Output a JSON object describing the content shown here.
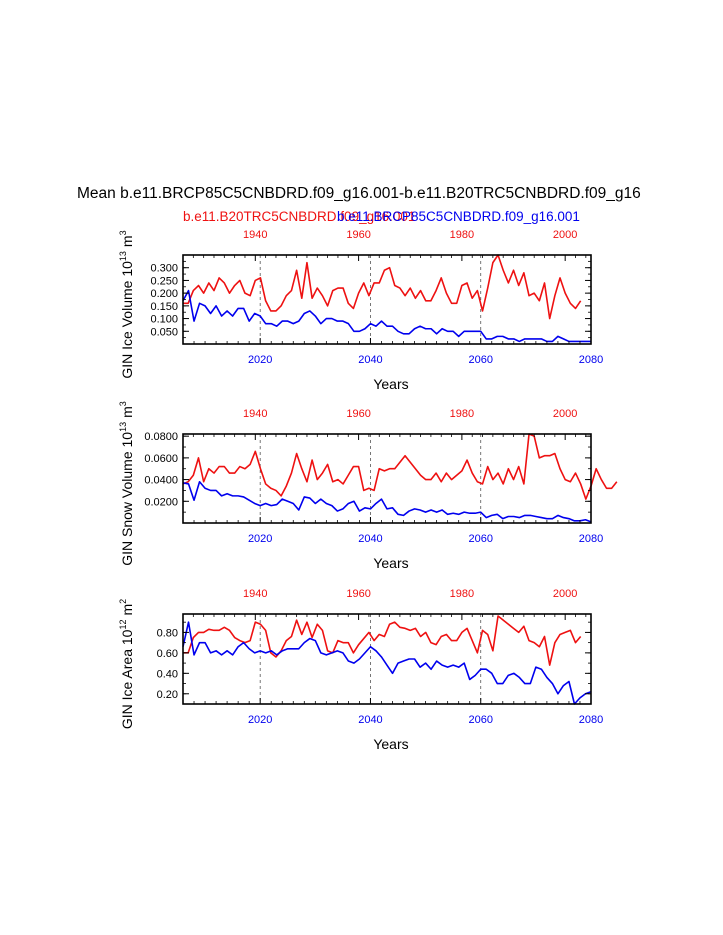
{
  "title": "Mean b.e11.BRCP85C5CNBDRD.f09_g16.001-b.e11.B20TRC5CNBDRD.f09_g16",
  "legend_red": "b.e11.B20TRC5CNBDRD.f09_g16.001",
  "legend_blue": "b.e11.BRCP85C5CNBDRD.f09_g16.001",
  "colors": {
    "red": "#ee1111",
    "blue": "#0000ee",
    "axis": "#000000",
    "grid": "#555555"
  },
  "chart_data": [
    {
      "type": "line",
      "ylabel": "GIN Ice Volume 10",
      "ylabel_exp": "13",
      "ylabel_unit": "m",
      "ylabel_unit_exp": "3",
      "xlabel": "Years",
      "ylim": [
        0.0,
        0.35
      ],
      "yticks": [
        0.05,
        0.1,
        0.15,
        0.2,
        0.25,
        0.3
      ],
      "ytick_labels": [
        "0.050",
        "0.100",
        "0.150",
        "0.200",
        "0.250",
        "0.300"
      ],
      "bottom_axis": {
        "range": [
          2006,
          2080
        ],
        "ticks": [
          2020,
          2040,
          2060,
          2080
        ],
        "labels": [
          "2020",
          "2040",
          "2060",
          "2080"
        ]
      },
      "top_axis": {
        "range": [
          1926,
          2005
        ],
        "ticks": [
          1940,
          1960,
          1980,
          2000
        ],
        "labels": [
          "1940",
          "1960",
          "1980",
          "2000"
        ]
      },
      "gridlines_x": [
        2020,
        2040,
        2060
      ],
      "series": [
        {
          "name": "b.e11.B20TRC5CNBDRD.f09_g16.001",
          "color": "#ee1111",
          "x_start": 1926,
          "values": [
            0.16,
            0.16,
            0.21,
            0.23,
            0.2,
            0.24,
            0.21,
            0.26,
            0.24,
            0.2,
            0.23,
            0.25,
            0.2,
            0.19,
            0.25,
            0.26,
            0.17,
            0.13,
            0.13,
            0.15,
            0.19,
            0.21,
            0.29,
            0.18,
            0.32,
            0.18,
            0.22,
            0.19,
            0.15,
            0.21,
            0.22,
            0.22,
            0.16,
            0.14,
            0.2,
            0.24,
            0.19,
            0.24,
            0.24,
            0.29,
            0.3,
            0.23,
            0.22,
            0.19,
            0.22,
            0.18,
            0.21,
            0.17,
            0.17,
            0.21,
            0.26,
            0.2,
            0.16,
            0.16,
            0.23,
            0.24,
            0.18,
            0.21,
            0.13,
            0.22,
            0.32,
            0.35,
            0.29,
            0.24,
            0.29,
            0.23,
            0.28,
            0.19,
            0.2,
            0.17,
            0.24,
            0.1,
            0.19,
            0.26,
            0.2,
            0.16,
            0.14,
            0.17
          ]
        },
        {
          "name": "b.e11.BRCP85C5CNBDRD.f09_g16.001",
          "color": "#0000ee",
          "x_start": 2006,
          "values": [
            0.17,
            0.21,
            0.09,
            0.16,
            0.15,
            0.12,
            0.15,
            0.11,
            0.13,
            0.11,
            0.14,
            0.14,
            0.09,
            0.12,
            0.11,
            0.08,
            0.08,
            0.07,
            0.09,
            0.09,
            0.08,
            0.09,
            0.12,
            0.13,
            0.11,
            0.08,
            0.1,
            0.1,
            0.09,
            0.09,
            0.08,
            0.05,
            0.05,
            0.06,
            0.08,
            0.07,
            0.09,
            0.07,
            0.07,
            0.05,
            0.04,
            0.04,
            0.06,
            0.07,
            0.06,
            0.06,
            0.04,
            0.06,
            0.05,
            0.05,
            0.03,
            0.05,
            0.05,
            0.05,
            0.05,
            0.02,
            0.02,
            0.03,
            0.03,
            0.02,
            0.02,
            0.01,
            0.02,
            0.02,
            0.02,
            0.02,
            0.01,
            0.01,
            0.03,
            0.02,
            0.01,
            0.01,
            0.01,
            0.01,
            0.01
          ]
        }
      ]
    },
    {
      "type": "line",
      "ylabel": "GIN Snow Volume 10",
      "ylabel_exp": "13",
      "ylabel_unit": "m",
      "ylabel_unit_exp": "3",
      "xlabel": "Years",
      "ylim": [
        0.0,
        0.082
      ],
      "yticks": [
        0.02,
        0.04,
        0.06,
        0.08
      ],
      "ytick_labels": [
        "0.0200",
        "0.0400",
        "0.0600",
        "0.0800"
      ],
      "bottom_axis": {
        "range": [
          2006,
          2080
        ],
        "ticks": [
          2020,
          2040,
          2060,
          2080
        ],
        "labels": [
          "2020",
          "2040",
          "2060",
          "2080"
        ]
      },
      "top_axis": {
        "range": [
          1926,
          2005
        ],
        "ticks": [
          1940,
          1960,
          1980,
          2000
        ],
        "labels": [
          "1940",
          "1960",
          "1980",
          "2000"
        ]
      },
      "gridlines_x": [
        2020,
        2040,
        2060
      ],
      "series": [
        {
          "name": "b.e11.B20TRC5CNBDRD.f09_g16.001",
          "color": "#ee1111",
          "x_start": 1926,
          "values": [
            0.036,
            0.038,
            0.044,
            0.06,
            0.038,
            0.05,
            0.046,
            0.052,
            0.052,
            0.046,
            0.046,
            0.052,
            0.05,
            0.054,
            0.066,
            0.05,
            0.036,
            0.032,
            0.03,
            0.025,
            0.034,
            0.046,
            0.064,
            0.05,
            0.038,
            0.058,
            0.04,
            0.046,
            0.054,
            0.038,
            0.04,
            0.036,
            0.044,
            0.052,
            0.052,
            0.03,
            0.032,
            0.03,
            0.05,
            0.048,
            0.05,
            0.05,
            0.056,
            0.062,
            0.056,
            0.05,
            0.044,
            0.04,
            0.04,
            0.046,
            0.038,
            0.046,
            0.04,
            0.044,
            0.048,
            0.058,
            0.046,
            0.038,
            0.036,
            0.052,
            0.04,
            0.046,
            0.036,
            0.05,
            0.04,
            0.052,
            0.036,
            0.082,
            0.08,
            0.06,
            0.062,
            0.062,
            0.064,
            0.05,
            0.04,
            0.038,
            0.046,
            0.036,
            0.022,
            0.034,
            0.05,
            0.04,
            0.032,
            0.032,
            0.038
          ]
        },
        {
          "name": "b.e11.BRCP85C5CNBDRD.f09_g16.001",
          "color": "#0000ee",
          "x_start": 2006,
          "values": [
            0.037,
            0.036,
            0.021,
            0.038,
            0.032,
            0.03,
            0.03,
            0.025,
            0.027,
            0.025,
            0.025,
            0.024,
            0.021,
            0.018,
            0.016,
            0.018,
            0.016,
            0.017,
            0.022,
            0.02,
            0.018,
            0.012,
            0.024,
            0.023,
            0.018,
            0.022,
            0.018,
            0.016,
            0.011,
            0.013,
            0.018,
            0.02,
            0.011,
            0.014,
            0.013,
            0.018,
            0.022,
            0.013,
            0.014,
            0.008,
            0.007,
            0.011,
            0.013,
            0.012,
            0.01,
            0.012,
            0.01,
            0.012,
            0.008,
            0.009,
            0.008,
            0.01,
            0.009,
            0.009,
            0.01,
            0.005,
            0.007,
            0.008,
            0.004,
            0.006,
            0.006,
            0.005,
            0.007,
            0.007,
            0.006,
            0.005,
            0.004,
            0.004,
            0.007,
            0.005,
            0.004,
            0.002,
            0.002,
            0.003,
            0.001
          ]
        }
      ]
    },
    {
      "type": "line",
      "ylabel": "GIN Ice Area 10",
      "ylabel_exp": "12",
      "ylabel_unit": "m",
      "ylabel_unit_exp": "2",
      "xlabel": "Years",
      "ylim": [
        0.1,
        0.98
      ],
      "yticks": [
        0.2,
        0.4,
        0.6,
        0.8
      ],
      "ytick_labels": [
        "0.20",
        "0.40",
        "0.60",
        "0.80"
      ],
      "bottom_axis": {
        "range": [
          2006,
          2080
        ],
        "ticks": [
          2020,
          2040,
          2060,
          2080
        ],
        "labels": [
          "2020",
          "2040",
          "2060",
          "2080"
        ]
      },
      "top_axis": {
        "range": [
          1926,
          2005
        ],
        "ticks": [
          1940,
          1960,
          1980,
          2000
        ],
        "labels": [
          "1940",
          "1960",
          "1980",
          "2000"
        ]
      },
      "gridlines_x": [
        2020,
        2040,
        2060
      ],
      "series": [
        {
          "name": "b.e11.B20TRC5CNBDRD.f09_g16.001",
          "color": "#ee1111",
          "x_start": 1926,
          "values": [
            0.6,
            0.6,
            0.75,
            0.8,
            0.8,
            0.83,
            0.82,
            0.82,
            0.85,
            0.82,
            0.75,
            0.72,
            0.7,
            0.72,
            0.9,
            0.88,
            0.82,
            0.6,
            0.56,
            0.62,
            0.72,
            0.76,
            0.92,
            0.78,
            0.9,
            0.75,
            0.88,
            0.82,
            0.62,
            0.6,
            0.72,
            0.7,
            0.7,
            0.6,
            0.68,
            0.74,
            0.8,
            0.72,
            0.78,
            0.76,
            0.88,
            0.9,
            0.85,
            0.84,
            0.82,
            0.84,
            0.76,
            0.8,
            0.7,
            0.68,
            0.76,
            0.78,
            0.72,
            0.72,
            0.8,
            0.84,
            0.72,
            0.6,
            0.82,
            0.78,
            0.62,
            0.96,
            0.92,
            0.88,
            0.84,
            0.8,
            0.86,
            0.72,
            0.7,
            0.66,
            0.76,
            0.48,
            0.7,
            0.78,
            0.8,
            0.82,
            0.7,
            0.76
          ]
        },
        {
          "name": "b.e11.BRCP85C5CNBDRD.f09_g16.001",
          "color": "#0000ee",
          "x_start": 2006,
          "values": [
            0.66,
            0.9,
            0.58,
            0.7,
            0.7,
            0.6,
            0.62,
            0.58,
            0.62,
            0.58,
            0.66,
            0.7,
            0.64,
            0.6,
            0.62,
            0.6,
            0.62,
            0.58,
            0.62,
            0.64,
            0.64,
            0.64,
            0.7,
            0.74,
            0.72,
            0.6,
            0.58,
            0.6,
            0.62,
            0.6,
            0.52,
            0.5,
            0.54,
            0.6,
            0.66,
            0.62,
            0.56,
            0.48,
            0.4,
            0.5,
            0.52,
            0.54,
            0.54,
            0.46,
            0.5,
            0.44,
            0.52,
            0.48,
            0.46,
            0.48,
            0.46,
            0.5,
            0.34,
            0.38,
            0.44,
            0.44,
            0.4,
            0.3,
            0.3,
            0.38,
            0.4,
            0.36,
            0.3,
            0.3,
            0.46,
            0.44,
            0.36,
            0.3,
            0.2,
            0.28,
            0.32,
            0.1,
            0.16,
            0.2,
            0.22
          ]
        }
      ]
    }
  ]
}
